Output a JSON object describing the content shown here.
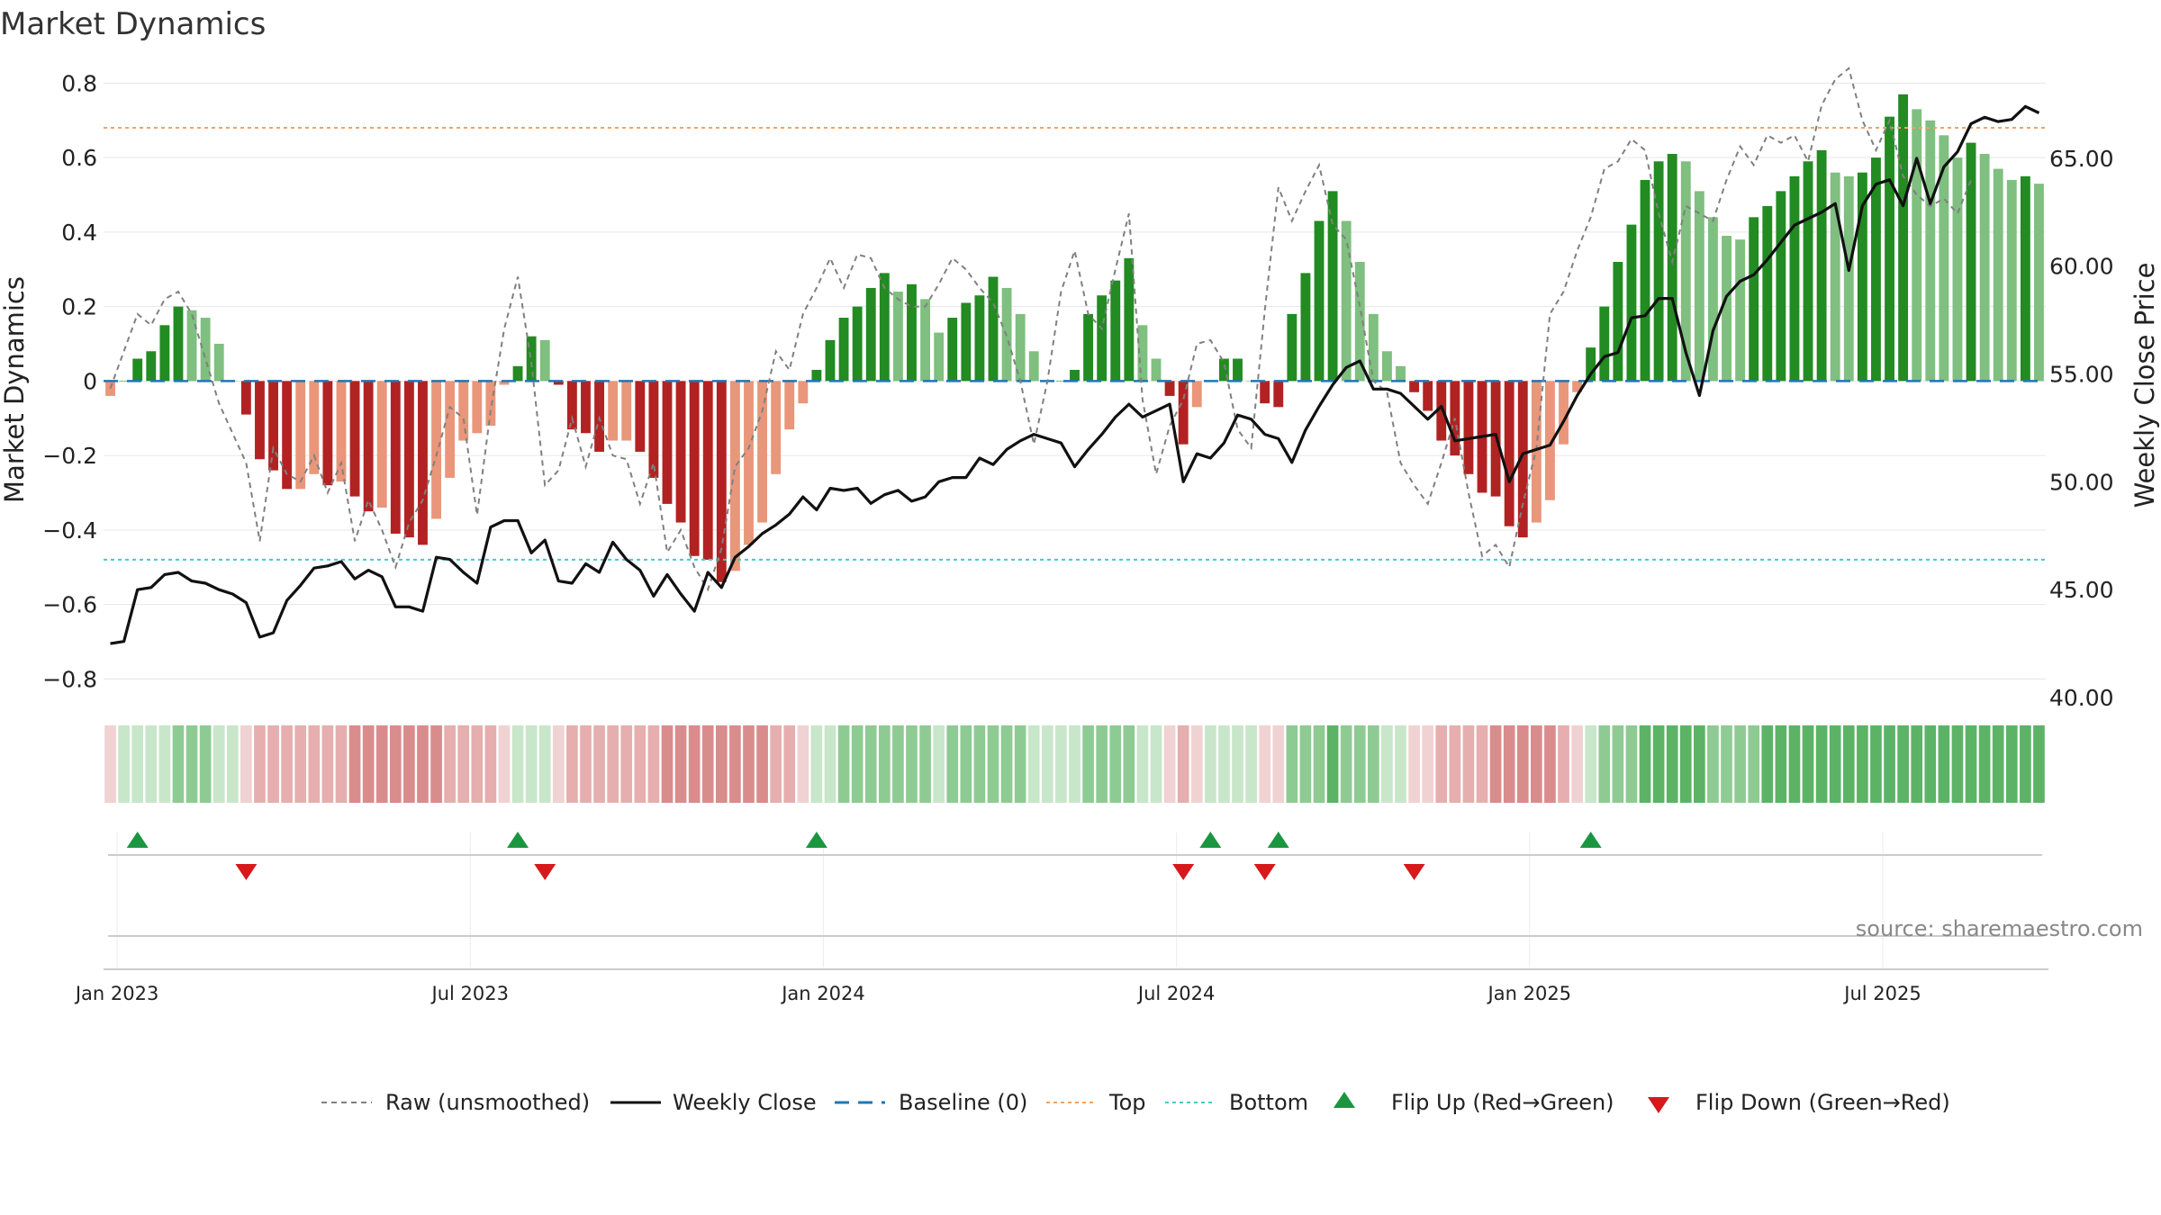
{
  "chart_data": {
    "type": "bar",
    "title": "Market Dynamics",
    "ylabel": "Market Dynamics",
    "y2label": "Weekly Close Price",
    "ylim": [
      -0.85,
      0.83
    ],
    "y2lim": [
      40.0,
      69.0
    ],
    "yticks": [
      "0.8",
      "0.6",
      "0.4",
      "0.2",
      "0",
      "−0.2",
      "−0.4",
      "−0.6",
      "−0.8"
    ],
    "y2ticks": [
      "65.00",
      "60.00",
      "55.00",
      "50.00",
      "45.00",
      "40.00"
    ],
    "xtick_labels": [
      "Jan 2023",
      "Jul 2023",
      "Jan 2024",
      "Jul 2024",
      "Jan 2025",
      "Jul 2025"
    ],
    "xtick_weeks": [
      1,
      27,
      53,
      79,
      105,
      131
    ],
    "top_line": 0.68,
    "bottom_line": -0.48,
    "baseline": 0,
    "values": [
      -0.04,
      0.0,
      0.06,
      0.08,
      0.15,
      0.2,
      0.19,
      0.17,
      0.1,
      0.0,
      -0.09,
      -0.21,
      -0.24,
      -0.29,
      -0.29,
      -0.25,
      -0.28,
      -0.27,
      -0.31,
      -0.35,
      -0.34,
      -0.41,
      -0.42,
      -0.44,
      -0.37,
      -0.26,
      -0.16,
      -0.14,
      -0.12,
      -0.01,
      0.04,
      0.12,
      0.11,
      -0.01,
      -0.13,
      -0.14,
      -0.19,
      -0.16,
      -0.16,
      -0.19,
      -0.26,
      -0.33,
      -0.38,
      -0.47,
      -0.48,
      -0.54,
      -0.51,
      -0.44,
      -0.38,
      -0.25,
      -0.13,
      -0.06,
      0.03,
      0.11,
      0.17,
      0.2,
      0.25,
      0.29,
      0.24,
      0.26,
      0.22,
      0.13,
      0.17,
      0.21,
      0.23,
      0.28,
      0.25,
      0.18,
      0.08,
      0.0,
      0.0,
      0.03,
      0.18,
      0.23,
      0.27,
      0.33,
      0.15,
      0.06,
      -0.04,
      -0.17,
      -0.07,
      0.0,
      0.06,
      0.06,
      0.0,
      -0.06,
      -0.07,
      0.18,
      0.29,
      0.43,
      0.51,
      0.43,
      0.32,
      0.18,
      0.08,
      0.04,
      -0.03,
      -0.08,
      -0.16,
      -0.2,
      -0.25,
      -0.3,
      -0.31,
      -0.39,
      -0.42,
      -0.38,
      -0.32,
      -0.17,
      -0.03,
      0.09,
      0.2,
      0.32,
      0.42,
      0.54,
      0.59,
      0.61,
      0.59,
      0.51,
      0.44,
      0.39,
      0.38,
      0.44,
      0.47,
      0.51,
      0.55,
      0.59,
      0.62,
      0.56,
      0.55,
      0.56,
      0.6,
      0.71,
      0.77,
      0.73,
      0.7,
      0.66,
      0.6,
      0.64,
      0.61,
      0.57,
      0.54,
      0.55,
      0.53
    ],
    "raw": [
      -0.02,
      0.08,
      0.18,
      0.15,
      0.22,
      0.24,
      0.18,
      0.06,
      -0.06,
      -0.14,
      -0.22,
      -0.43,
      -0.18,
      -0.25,
      -0.27,
      -0.2,
      -0.3,
      -0.22,
      -0.43,
      -0.32,
      -0.4,
      -0.5,
      -0.38,
      -0.32,
      -0.2,
      -0.07,
      -0.1,
      -0.36,
      -0.08,
      0.14,
      0.28,
      0.05,
      -0.28,
      -0.24,
      -0.1,
      -0.23,
      -0.1,
      -0.2,
      -0.21,
      -0.33,
      -0.22,
      -0.46,
      -0.4,
      -0.5,
      -0.56,
      -0.45,
      -0.23,
      -0.18,
      -0.08,
      0.08,
      0.03,
      0.18,
      0.25,
      0.33,
      0.25,
      0.34,
      0.33,
      0.25,
      0.22,
      0.2,
      0.2,
      0.26,
      0.33,
      0.3,
      0.25,
      0.21,
      0.12,
      0.0,
      -0.17,
      0.0,
      0.24,
      0.35,
      0.18,
      0.14,
      0.3,
      0.45,
      -0.05,
      -0.25,
      -0.12,
      -0.05,
      0.1,
      0.11,
      0.05,
      -0.13,
      -0.18,
      0.19,
      0.52,
      0.43,
      0.51,
      0.58,
      0.42,
      0.38,
      0.2,
      0.0,
      -0.03,
      -0.22,
      -0.28,
      -0.33,
      -0.22,
      -0.1,
      -0.3,
      -0.47,
      -0.44,
      -0.5,
      -0.33,
      -0.18,
      0.18,
      0.24,
      0.35,
      0.44,
      0.57,
      0.59,
      0.65,
      0.62,
      0.45,
      0.32,
      0.47,
      0.45,
      0.43,
      0.54,
      0.63,
      0.58,
      0.66,
      0.64,
      0.66,
      0.59,
      0.74,
      0.81,
      0.84,
      0.7,
      0.62,
      0.7,
      0.55,
      0.5,
      0.47,
      0.49,
      0.45,
      0.54
    ],
    "close": [
      42.5,
      42.6,
      45.0,
      45.1,
      45.7,
      45.8,
      45.4,
      45.3,
      45.0,
      44.8,
      44.4,
      42.8,
      43.0,
      44.5,
      45.2,
      46.0,
      46.1,
      46.3,
      45.5,
      45.9,
      45.6,
      44.2,
      44.2,
      44.0,
      46.5,
      46.4,
      45.8,
      45.3,
      47.9,
      48.2,
      48.2,
      46.7,
      47.3,
      45.4,
      45.3,
      46.2,
      45.8,
      47.2,
      46.4,
      45.9,
      44.7,
      45.7,
      44.8,
      44.0,
      45.8,
      45.1,
      46.5,
      47.0,
      47.6,
      48.0,
      48.5,
      49.3,
      48.7,
      49.7,
      49.6,
      49.7,
      49.0,
      49.4,
      49.6,
      49.1,
      49.3,
      50.0,
      50.2,
      50.2,
      51.1,
      50.8,
      51.5,
      51.9,
      52.2,
      52.0,
      51.8,
      50.7,
      51.5,
      52.2,
      53.0,
      53.6,
      53.0,
      53.3,
      53.6,
      50.0,
      51.3,
      51.1,
      51.8,
      53.1,
      52.9,
      52.2,
      52.0,
      50.9,
      52.4,
      53.5,
      54.5,
      55.3,
      55.6,
      54.3,
      54.3,
      54.1,
      53.5,
      52.9,
      53.5,
      51.9,
      52.0,
      52.1,
      52.2,
      50.0,
      51.3,
      51.5,
      51.7,
      52.8,
      54.0,
      55.0,
      55.8,
      56.0,
      57.6,
      57.7,
      58.5,
      58.5,
      56.0,
      54.0,
      57.0,
      58.6,
      59.3,
      59.6,
      60.3,
      61.1,
      61.9,
      62.2,
      62.5,
      62.9,
      59.8,
      62.8,
      63.8,
      64.0,
      62.8,
      65.0,
      62.9,
      64.6,
      65.3,
      66.6,
      66.9,
      66.7,
      66.8,
      67.4,
      67.1
    ]
  },
  "heat_strip": {
    "colors": {
      "strong_green": "#5cb366",
      "mid_green": "#8ecb93",
      "light_green": "#c8e6c9",
      "strong_red": "#d98c8c",
      "mid_red": "#e6aeae",
      "light_red": "#f0d2d2"
    }
  },
  "flips": {
    "up": [
      2,
      30,
      52,
      81,
      86,
      109
    ],
    "down": [
      10,
      32,
      79,
      85,
      96
    ]
  },
  "colors": {
    "bar_strong_green": "#228b22",
    "bar_light_green": "#7fbf7f",
    "bar_strong_red": "#b22222",
    "bar_light_red": "#e9967a",
    "raw_line": "#808080",
    "close_line": "#111111",
    "baseline": "#1f77b4",
    "top_line": "#f4a261",
    "bottom_line": "#48c9c9",
    "flip_up": "#1a9641",
    "flip_down": "#d7191c"
  },
  "legend": {
    "raw": "Raw (unsmoothed)",
    "close": "Weekly Close",
    "baseline": "Baseline (0)",
    "top": "Top",
    "bottom": "Bottom",
    "flip_up": "Flip Up (Red→Green)",
    "flip_down": "Flip Down (Green→Red)"
  },
  "source": "source: sharemaestro.com"
}
